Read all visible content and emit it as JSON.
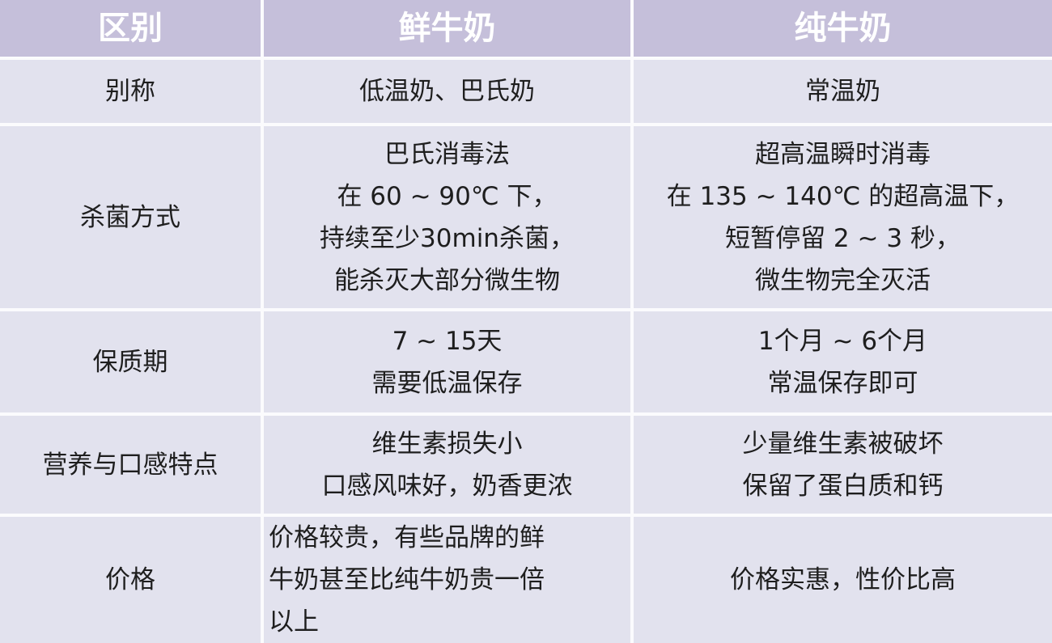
{
  "header": [
    "区别",
    "鲜牛奶",
    "纯牛奶"
  ],
  "rows": [
    {
      "label": "别称",
      "fresh": "低温奶、巴氏奶",
      "pure": "常温奶"
    },
    {
      "label": "杀菌方式",
      "fresh": "巴氏消毒法\n在 60 ~ 90℃ 下，\n持续至少30min杀菌，\n能杀灭大部分微生物",
      "pure": "超高温瞬时消毒\n在 135 ~ 140℃ 的超高温下，\n短暂停留 2 ~ 3 秒，\n微生物完全灭活"
    },
    {
      "label": "保质期",
      "fresh": "7 ~ 15天\n需要低温保存",
      "pure": "1个月 ~ 6个月\n常温保存即可"
    },
    {
      "label": "营养与口感特点",
      "fresh": "维生素损失小\n口感风味好，奶香更浓",
      "pure": "少量维生素被破坏\n保留了蛋白质和钙"
    },
    {
      "label": "价格",
      "fresh": "价格较贵，有些品牌的鲜\n牛奶甚至比纯牛奶贵一倍\n以上",
      "pure": "价格实惠，性价比高"
    }
  ],
  "colors": {
    "header_bg": "#c5bfda",
    "cell_bg": "#e2e2ee",
    "header_text": "#ffffff"
  }
}
